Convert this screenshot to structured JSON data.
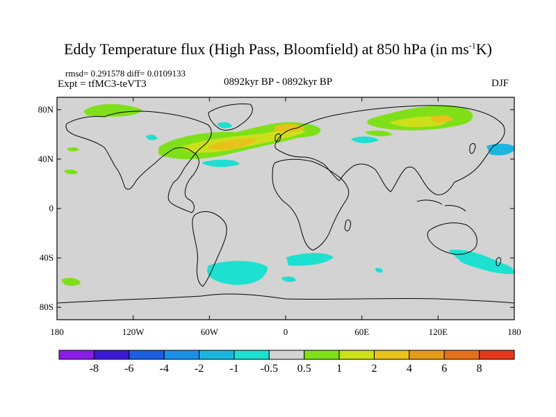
{
  "title": {
    "main": "Eddy Temperature flux (High Pass, Bloomfield) at 850 hPa (in ms",
    "superscript": "-1",
    "suffix": "K)"
  },
  "stats": "rmsd= 0.291578 diff= 0.0109133",
  "experiment": "Expt = tfMC3-teVT3",
  "period": "0892kyr BP - 0892kyr BP",
  "season": "DJF",
  "map": {
    "ocean_color": "#d3d3d3",
    "lat_labels": [
      {
        "lat": 80,
        "label": "80N"
      },
      {
        "lat": 40,
        "label": "40N"
      },
      {
        "lat": 0,
        "label": "0"
      },
      {
        "lat": -40,
        "label": "40S"
      },
      {
        "lat": -80,
        "label": "80S"
      }
    ],
    "lon_labels": [
      {
        "lon": -180,
        "label": "180"
      },
      {
        "lon": -120,
        "label": "120W"
      },
      {
        "lon": -60,
        "label": "60W"
      },
      {
        "lon": 0,
        "label": "0"
      },
      {
        "lon": 60,
        "label": "60E"
      },
      {
        "lon": 120,
        "label": "120E"
      },
      {
        "lon": 180,
        "label": "180"
      }
    ]
  },
  "colorbar": {
    "colors": [
      "#8a1ce6",
      "#3b1ad6",
      "#1c5ee0",
      "#1a8fe8",
      "#1ab6e0",
      "#1ee0d0",
      "#d3d3d3",
      "#7fe01a",
      "#cce01a",
      "#e6c21a",
      "#e69a1a",
      "#e6701a",
      "#e6381a"
    ],
    "labels": [
      "-8",
      "-6",
      "-4",
      "-2",
      "-1",
      "-0.5",
      "0.5",
      "1",
      "2",
      "4",
      "6",
      "8"
    ]
  }
}
